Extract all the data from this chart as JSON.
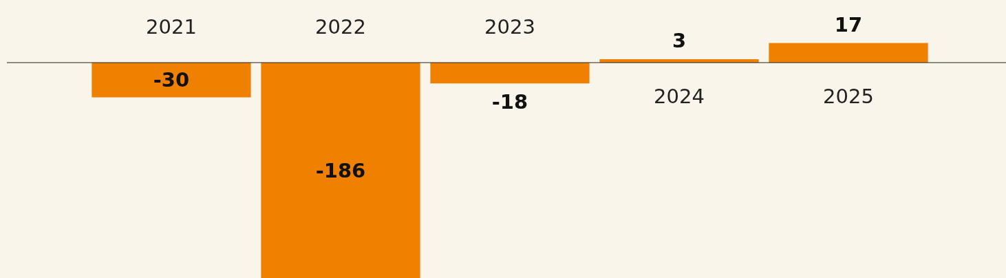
{
  "chart_data": {
    "type": "bar",
    "categories": [
      "2021",
      "2022",
      "2023",
      "2024",
      "2025"
    ],
    "values": [
      -30,
      -186,
      -18,
      3,
      17
    ],
    "color": "#f08000",
    "data_labels": true
  }
}
